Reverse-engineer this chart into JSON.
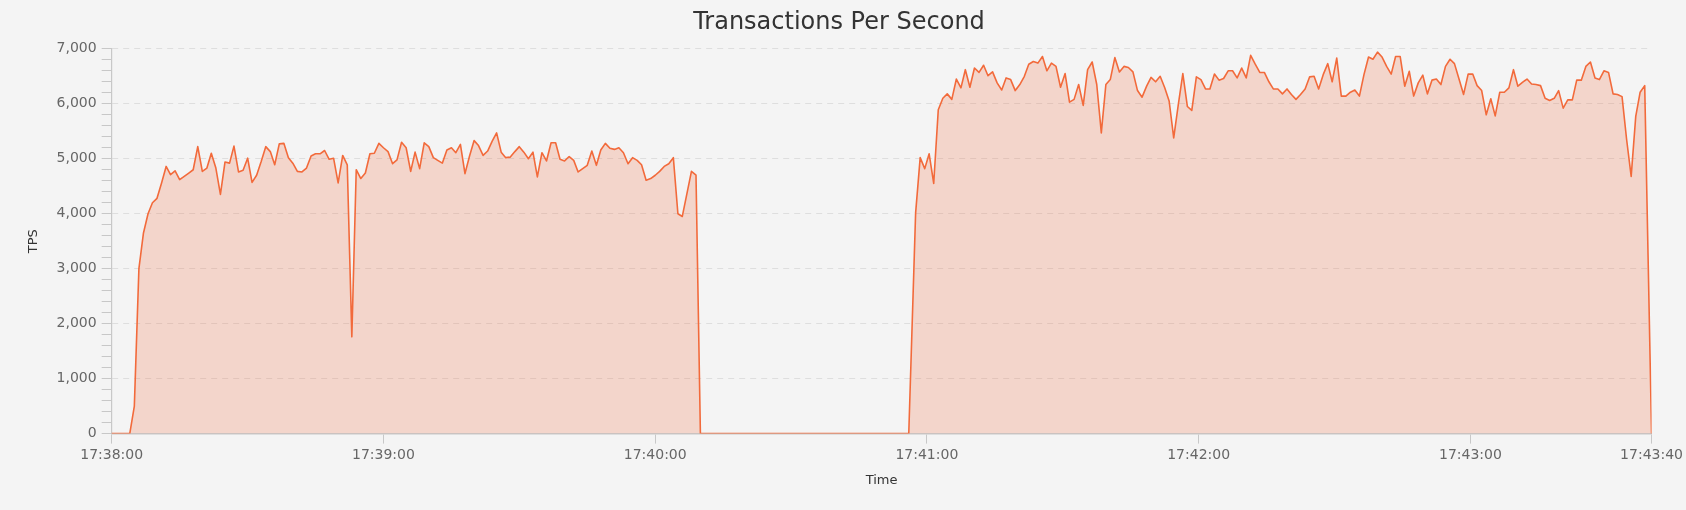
{
  "chart_data": {
    "type": "area",
    "title": "Transactions Per Second",
    "xlabel": "Time",
    "ylabel": "TPS",
    "color": "#f26a3b",
    "x": [
      17.63333,
      17.63444,
      17.63472,
      17.635,
      17.63528,
      17.63556,
      17.63583,
      17.63611,
      17.63639,
      17.63667,
      17.63694,
      17.63722,
      17.6375,
      17.63778,
      17.63806,
      17.63833,
      17.63861,
      17.63889,
      17.63917,
      17.63944,
      17.63972,
      17.64,
      17.64028,
      17.64056,
      17.64083,
      17.64111,
      17.64139,
      17.64167,
      17.64194,
      17.64222,
      17.6425,
      17.64278,
      17.64306,
      17.64333,
      17.64361,
      17.64389,
      17.64417,
      17.64444,
      17.64472,
      17.645,
      17.64528,
      17.64556,
      17.64583,
      17.64611,
      17.64639,
      17.64667,
      17.64694,
      17.64722,
      17.6475,
      17.64778,
      17.64806,
      17.64833,
      17.64861,
      17.64889,
      17.64917,
      17.64944,
      17.64972,
      17.65,
      17.65028,
      17.65056,
      17.65083,
      17.65111,
      17.65139,
      17.65167,
      17.65194,
      17.65222,
      17.6525,
      17.65278,
      17.65306,
      17.65333,
      17.65361,
      17.65389,
      17.65417,
      17.65444,
      17.65472,
      17.655,
      17.65528,
      17.65556,
      17.65583,
      17.65611,
      17.65639,
      17.65667,
      17.65694,
      17.65722,
      17.6575,
      17.65778,
      17.65806,
      17.65833,
      17.65861,
      17.65889,
      17.65917,
      17.65944,
      17.65972,
      17.66,
      17.66028,
      17.66056,
      17.66083,
      17.66111,
      17.66139,
      17.66167,
      17.66194,
      17.66222,
      17.6625,
      17.66278,
      17.66306,
      17.66333,
      17.66361,
      17.66389,
      17.66417,
      17.66444,
      17.66472,
      17.665,
      17.66528,
      17.66556,
      17.66583,
      17.66611,
      17.66639,
      17.66667,
      17.66694,
      17.66722,
      17.6675,
      17.66778,
      17.66806,
      17.66833,
      17.66889,
      17.66917,
      17.66944,
      17.68222,
      17.68264,
      17.68292,
      17.6832,
      17.68347,
      17.68375,
      17.68403,
      17.68431,
      17.68458,
      17.68486,
      17.68514,
      17.68542,
      17.68569,
      17.68597,
      17.68625,
      17.68653,
      17.68681,
      17.68708,
      17.68736,
      17.68764,
      17.68792,
      17.68819,
      17.68847,
      17.68875,
      17.68903,
      17.68931,
      17.68958,
      17.68986,
      17.69014,
      17.69042,
      17.69069,
      17.69097,
      17.69125,
      17.69153,
      17.69181,
      17.69208,
      17.69236,
      17.69264,
      17.69292,
      17.69319,
      17.69347,
      17.69375,
      17.69403,
      17.69431,
      17.69458,
      17.69486,
      17.69514,
      17.69542,
      17.69569,
      17.69597,
      17.69625,
      17.69653,
      17.69681,
      17.69708,
      17.69736,
      17.69764,
      17.69792,
      17.69819,
      17.69847,
      17.69875,
      17.69903,
      17.69931,
      17.69958,
      17.69986,
      17.70014,
      17.70042,
      17.70069,
      17.70097,
      17.70125,
      17.70153,
      17.70181,
      17.70208,
      17.70236,
      17.70264,
      17.70292,
      17.70319,
      17.70347,
      17.70375,
      17.70403,
      17.70431,
      17.70458,
      17.70486,
      17.70514,
      17.70542,
      17.70569,
      17.70597,
      17.70625,
      17.70653,
      17.70681,
      17.70708,
      17.70736,
      17.70764,
      17.70792,
      17.70819,
      17.70847,
      17.70875,
      17.70903,
      17.70931,
      17.70958,
      17.70986,
      17.71014,
      17.71042,
      17.71069,
      17.71097,
      17.71125,
      17.71153,
      17.71181,
      17.71208,
      17.71236,
      17.71264,
      17.71292,
      17.71319,
      17.71347,
      17.71375,
      17.71403,
      17.71431,
      17.71458,
      17.71486,
      17.71514,
      17.71542,
      17.71569,
      17.71597,
      17.71625,
      17.71653,
      17.71681,
      17.71708,
      17.71736,
      17.71764,
      17.71792,
      17.71819,
      17.71847,
      17.71875,
      17.71903,
      17.71931,
      17.71958,
      17.71986,
      17.72014,
      17.72042,
      17.72069,
      17.72097,
      17.72125,
      17.72153,
      17.72181,
      17.72208,
      17.72236,
      17.72264,
      17.72292,
      17.72319,
      17.72347,
      17.72375,
      17.72403,
      17.72431,
      17.72458,
      17.72486,
      17.72514,
      17.72542,
      17.72569,
      17.72597,
      17.72625,
      17.72653,
      17.72681,
      17.72708,
      17.72736,
      17.72778
    ],
    "values": [
      0,
      0,
      500,
      3000,
      3650,
      4000,
      4200,
      4280,
      4560,
      4860,
      4710,
      4780,
      4620,
      4680,
      4740,
      4800,
      5220,
      4770,
      4830,
      5100,
      4830,
      4350,
      4940,
      4920,
      5230,
      4760,
      4790,
      5010,
      4570,
      4700,
      4950,
      5220,
      5130,
      4890,
      5270,
      5280,
      5020,
      4920,
      4770,
      4760,
      4830,
      5050,
      5090,
      5090,
      5150,
      4990,
      5010,
      4560,
      5060,
      4890,
      1760,
      4800,
      4640,
      4740,
      5090,
      5100,
      5280,
      5200,
      5130,
      4910,
      4980,
      5300,
      5200,
      4770,
      5120,
      4820,
      5290,
      5220,
      5020,
      4970,
      4920,
      5160,
      5200,
      5110,
      5260,
      4730,
      5050,
      5330,
      5240,
      5060,
      5140,
      5320,
      5470,
      5120,
      5020,
      5030,
      5130,
      5220,
      5120,
      5000,
      5120,
      4670,
      5110,
      4960,
      5290,
      5290,
      4990,
      4960,
      5040,
      4970,
      4760,
      4820,
      4880,
      5140,
      4880,
      5160,
      5280,
      5190,
      5170,
      5200,
      5110,
      4910,
      5020,
      4970,
      4890,
      4610,
      4640,
      4700,
      4770,
      4860,
      4910,
      5020,
      4000,
      3950,
      4770,
      4700,
      0,
      0,
      4010,
      5020,
      4820,
      5090,
      4550,
      5890,
      6100,
      6180,
      6080,
      6450,
      6290,
      6620,
      6300,
      6650,
      6570,
      6700,
      6510,
      6580,
      6380,
      6250,
      6470,
      6440,
      6240,
      6350,
      6500,
      6720,
      6770,
      6740,
      6860,
      6600,
      6740,
      6680,
      6300,
      6550,
      6030,
      6080,
      6350,
      5970,
      6620,
      6760,
      6350,
      5470,
      6350,
      6440,
      6840,
      6580,
      6680,
      6660,
      6580,
      6240,
      6120,
      6320,
      6480,
      6400,
      6500,
      6290,
      6050,
      5380,
      5980,
      6550,
      5950,
      5880,
      6490,
      6440,
      6270,
      6270,
      6540,
      6430,
      6460,
      6600,
      6600,
      6470,
      6650,
      6470,
      6880,
      6720,
      6570,
      6570,
      6400,
      6270,
      6270,
      6180,
      6270,
      6170,
      6080,
      6170,
      6270,
      6490,
      6500,
      6270,
      6530,
      6730,
      6400,
      6830,
      6140,
      6140,
      6210,
      6250,
      6140,
      6530,
      6850,
      6810,
      6940,
      6850,
      6680,
      6540,
      6860,
      6860,
      6320,
      6590,
      6140,
      6380,
      6520,
      6180,
      6430,
      6450,
      6350,
      6680,
      6810,
      6730,
      6450,
      6170,
      6540,
      6540,
      6330,
      6240,
      5800,
      6090,
      5780,
      6210,
      6210,
      6290,
      6620,
      6320,
      6390,
      6450,
      6360,
      6350,
      6330,
      6100,
      6060,
      6100,
      6240,
      5920,
      6070,
      6070,
      6430,
      6430,
      6680,
      6760,
      6470,
      6440,
      6600,
      6570,
      6180,
      6170,
      6130,
      5350,
      4680,
      5770,
      6210,
      6330,
      0
    ],
    "xlim": [
      17.63333,
      17.72778
    ],
    "xticks": [
      {
        "value": 17.63333,
        "label": "17:38:00"
      },
      {
        "value": 17.65,
        "label": "17:39:00"
      },
      {
        "value": 17.66667,
        "label": "17:40:00"
      },
      {
        "value": 17.68333,
        "label": "17:41:00"
      },
      {
        "value": 17.7,
        "label": "17:42:00"
      },
      {
        "value": 17.71667,
        "label": "17:43:00"
      },
      {
        "value": 17.72778,
        "label": "17:43:40"
      }
    ],
    "ylim": [
      0,
      7000
    ],
    "yticks": [
      0,
      {
        "value": 200,
        "label": null
      },
      {
        "value": 400,
        "label": null
      },
      {
        "value": 600,
        "label": null
      },
      {
        "value": 800,
        "label": null
      },
      {
        "value": 1000,
        "label": "1,000"
      },
      {
        "value": 1200,
        "label": null
      },
      {
        "value": 1400,
        "label": null
      },
      {
        "value": 1600,
        "label": null
      },
      {
        "value": 1800,
        "label": null
      },
      {
        "value": 2000,
        "label": "2,000"
      },
      {
        "value": 2200,
        "label": null
      },
      {
        "value": 2400,
        "label": null
      },
      {
        "value": 2600,
        "label": null
      },
      {
        "value": 2800,
        "label": null
      },
      {
        "value": 3000,
        "label": "3,000"
      },
      {
        "value": 3200,
        "label": null
      },
      {
        "value": 3400,
        "label": null
      },
      {
        "value": 3600,
        "label": null
      },
      {
        "value": 3800,
        "label": null
      },
      {
        "value": 4000,
        "label": "4,000"
      },
      {
        "value": 4200,
        "label": null
      },
      {
        "value": 4400,
        "label": null
      },
      {
        "value": 4600,
        "label": null
      },
      {
        "value": 4800,
        "label": null
      },
      {
        "value": 5000,
        "label": "5,000"
      },
      {
        "value": 5200,
        "label": null
      },
      {
        "value": 5400,
        "label": null
      },
      {
        "value": 5600,
        "label": null
      },
      {
        "value": 5800,
        "label": null
      },
      {
        "value": 6000,
        "label": "6,000"
      },
      {
        "value": 6200,
        "label": null
      },
      {
        "value": 6400,
        "label": null
      },
      {
        "value": 6600,
        "label": null
      },
      {
        "value": 6800,
        "label": null
      },
      {
        "value": 7000,
        "label": "7,000"
      }
    ],
    "grid": "y"
  }
}
